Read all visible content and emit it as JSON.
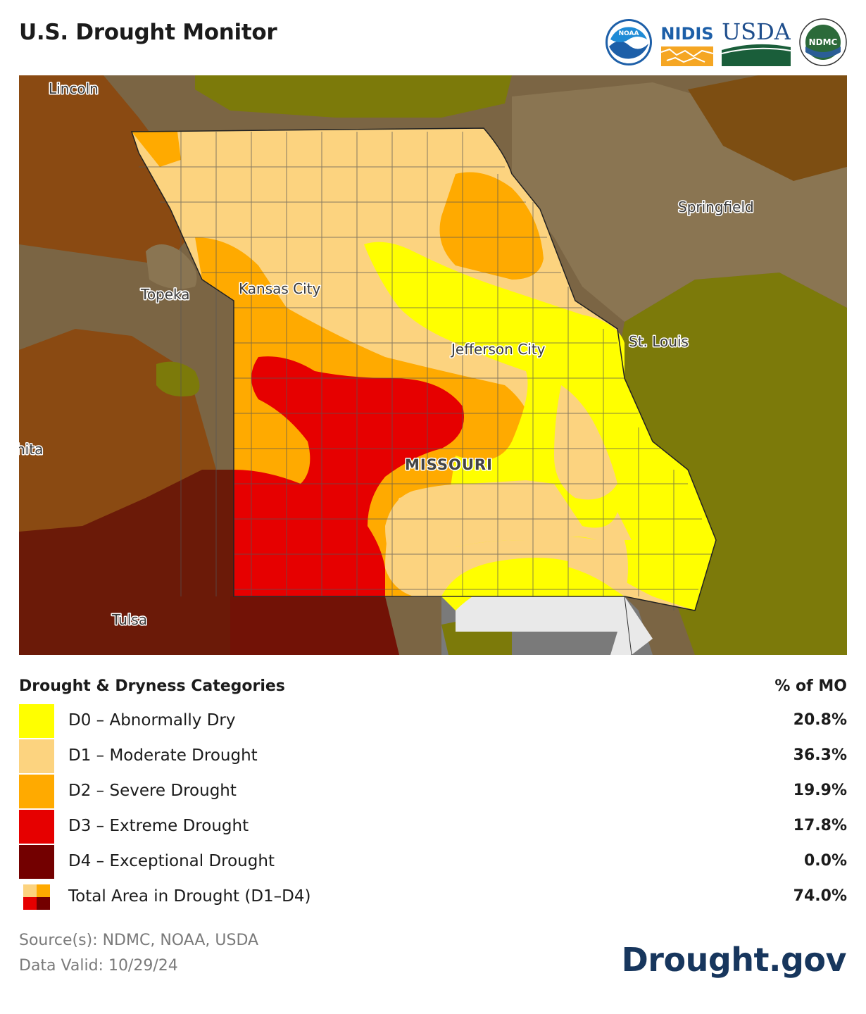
{
  "header": {
    "title": "U.S. Drought Monitor",
    "logos": [
      {
        "name": "NOAA",
        "text": "NOAA"
      },
      {
        "name": "NIDIS",
        "text": "NIDIS"
      },
      {
        "name": "USDA",
        "text": "USDA"
      },
      {
        "name": "NDMC",
        "text": "NDMC"
      }
    ]
  },
  "map": {
    "places": {
      "lincoln": "Lincoln",
      "springfield": "Springfield",
      "topeka": "Topeka",
      "kansas_city": "Kansas City",
      "jefferson_city": "Jefferson City",
      "st_louis": "St. Louis",
      "wichita": "hita",
      "missouri": "MISSOURI",
      "tulsa": "Tulsa"
    },
    "colors": {
      "D0": "#ffff00",
      "D1": "#fcd37f",
      "D2": "#ffaa00",
      "D3": "#e60000",
      "D4": "#730000",
      "none": "#e9e9e9"
    }
  },
  "legend": {
    "title": "Drought & Dryness Categories",
    "column_label": "% of MO",
    "rows": [
      {
        "label": "D0 – Abnormally Dry",
        "percent": "20.8%",
        "color": "#ffff00"
      },
      {
        "label": "D1 – Moderate Drought",
        "percent": "36.3%",
        "color": "#fcd37f"
      },
      {
        "label": "D2 – Severe Drought",
        "percent": "19.9%",
        "color": "#ffaa00"
      },
      {
        "label": "D3 – Extreme Drought",
        "percent": "17.8%",
        "color": "#e60000"
      },
      {
        "label": "D4 – Exceptional Drought",
        "percent": "0.0%",
        "color": "#730000"
      }
    ],
    "total": {
      "label": "Total Area in Drought (D1–D4)",
      "percent": "74.0%"
    }
  },
  "footer": {
    "source": "Source(s): NDMC, NOAA, USDA",
    "valid": "Data Valid: 10/29/24",
    "brand": "Drought.gov"
  }
}
